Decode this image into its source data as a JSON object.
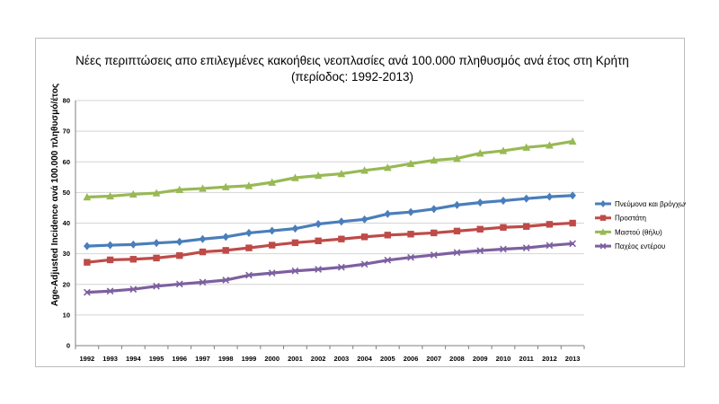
{
  "chart_data": {
    "type": "line",
    "title": "Νέες περιπτώσεις απο επιλεγμένες κακοήθεις νεοπλασίες ανά 100.000 πληθυσμός ανά έτος στη Κρήτη",
    "subtitle": "(περίοδος: 1992-2013)",
    "xlabel": "",
    "ylabel": "Age-Adjusted Incidence ανά 100.000 πληθυσμό/έτος",
    "ylim": [
      0,
      80
    ],
    "yticks": [
      0,
      10,
      20,
      30,
      40,
      50,
      60,
      70,
      80
    ],
    "grid": true,
    "legend_position": "right",
    "categories": [
      "1992",
      "1993",
      "1994",
      "1995",
      "1996",
      "1997",
      "1998",
      "1999",
      "2000",
      "2001",
      "2002",
      "2003",
      "2004",
      "2005",
      "2006",
      "2007",
      "2008",
      "2009",
      "2010",
      "2011",
      "2012",
      "2013"
    ],
    "series": [
      {
        "name": "Πνεύμονα και βρόγχων",
        "color": "#4a7ebb",
        "marker": "diamond",
        "values": [
          32.5,
          32.8,
          33.0,
          33.5,
          33.9,
          34.8,
          35.5,
          36.8,
          37.5,
          38.2,
          39.7,
          40.5,
          41.2,
          43.0,
          43.6,
          44.6,
          45.9,
          46.7,
          47.3,
          48.0,
          48.6,
          49.0
        ]
      },
      {
        "name": "Προστάτη",
        "color": "#be4b48",
        "marker": "square",
        "values": [
          27.2,
          28.0,
          28.2,
          28.6,
          29.4,
          30.6,
          31.1,
          31.9,
          32.8,
          33.6,
          34.2,
          34.8,
          35.5,
          36.1,
          36.4,
          36.8,
          37.4,
          38.0,
          38.6,
          38.9,
          39.6,
          40.0
        ]
      },
      {
        "name": "Μαστού (θήλυ)",
        "color": "#98b954",
        "marker": "triangle",
        "values": [
          48.5,
          48.8,
          49.4,
          49.8,
          50.9,
          51.3,
          51.8,
          52.2,
          53.3,
          54.8,
          55.5,
          56.1,
          57.2,
          58.1,
          59.4,
          60.5,
          61.1,
          62.8,
          63.6,
          64.7,
          65.4,
          66.7
        ]
      },
      {
        "name": "Παχέος εντέρου",
        "color": "#7d60a0",
        "marker": "x",
        "values": [
          17.4,
          17.8,
          18.4,
          19.4,
          20.1,
          20.7,
          21.4,
          23.0,
          23.7,
          24.4,
          24.9,
          25.6,
          26.6,
          27.9,
          28.8,
          29.6,
          30.4,
          31.0,
          31.5,
          31.9,
          32.7,
          33.3
        ]
      }
    ]
  }
}
